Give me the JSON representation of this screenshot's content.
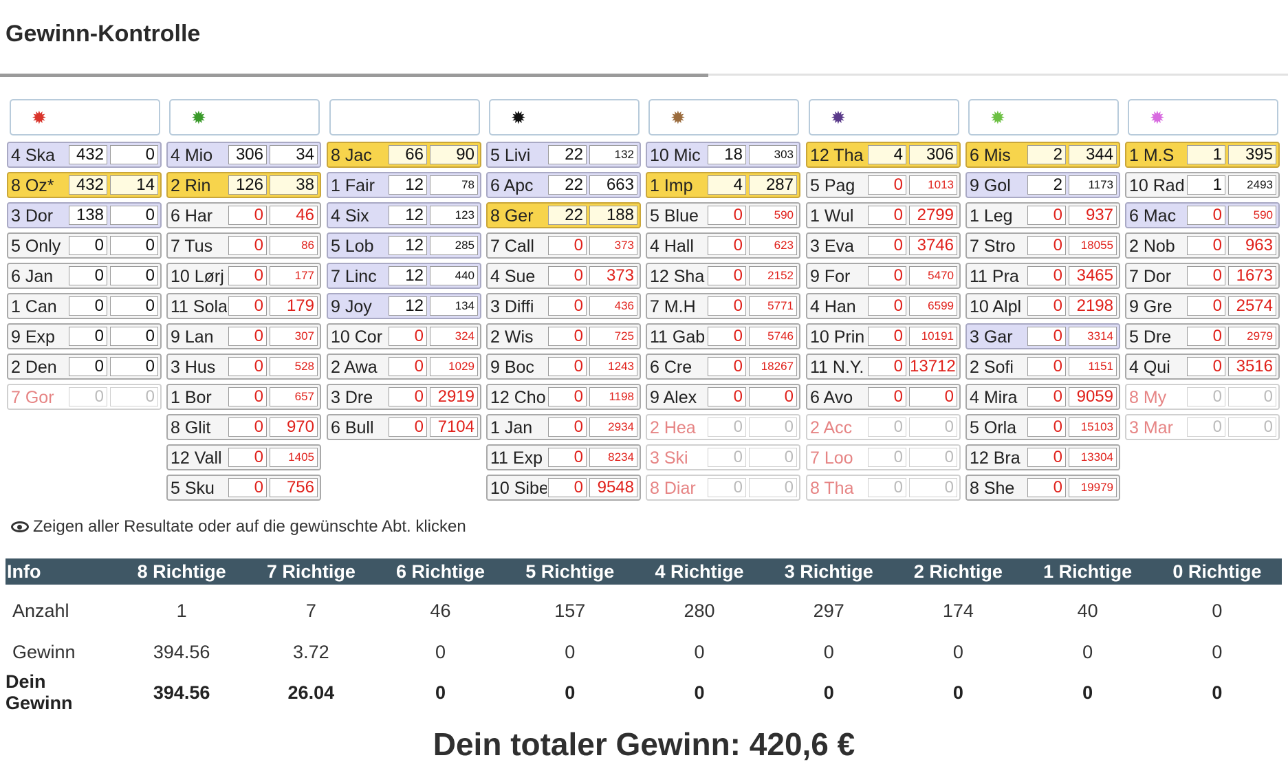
{
  "title": "Gewinn-Kontrolle",
  "columns": [
    {
      "icon": {
        "name": "red-star-icon",
        "color": "#d9342b",
        "glyph": "✹"
      },
      "rows": [
        {
          "name": "4 Ska",
          "a": "432",
          "b": "0",
          "style": "lav"
        },
        {
          "name": "8 Oz*",
          "a": "432",
          "b": "14",
          "style": "gold"
        },
        {
          "name": "3 Dor",
          "a": "138",
          "b": "0",
          "style": "lav"
        },
        {
          "name": "5 Only",
          "a": "0",
          "b": "0",
          "style": "grey"
        },
        {
          "name": "6 Jan",
          "a": "0",
          "b": "0",
          "style": "grey"
        },
        {
          "name": "1 Can",
          "a": "0",
          "b": "0",
          "style": "grey"
        },
        {
          "name": "9 Exp",
          "a": "0",
          "b": "0",
          "style": "grey"
        },
        {
          "name": "2 Den",
          "a": "0",
          "b": "0",
          "style": "grey"
        },
        {
          "name": "7 Gor",
          "a": "0",
          "b": "0",
          "style": "faded"
        }
      ]
    },
    {
      "icon": {
        "name": "green-star-icon",
        "color": "#3a9a2a",
        "glyph": "✹"
      },
      "rows": [
        {
          "name": "4 Mio",
          "a": "306",
          "b": "34",
          "style": "lav"
        },
        {
          "name": "2 Rin",
          "a": "126",
          "b": "38",
          "style": "gold"
        },
        {
          "name": "6 Har",
          "a": "0",
          "b": "46",
          "style": "grey",
          "red": true
        },
        {
          "name": "7 Tus",
          "a": "0",
          "b": "86",
          "style": "grey",
          "red": true,
          "small": true
        },
        {
          "name": "10 Lørj",
          "a": "0",
          "b": "177",
          "style": "grey",
          "red": true,
          "small": true
        },
        {
          "name": "11 Sola",
          "a": "0",
          "b": "179",
          "style": "grey",
          "red": true
        },
        {
          "name": "9 Lan",
          "a": "0",
          "b": "307",
          "style": "grey",
          "red": true,
          "small": true
        },
        {
          "name": "3 Hus",
          "a": "0",
          "b": "528",
          "style": "grey",
          "red": true,
          "small": true
        },
        {
          "name": "1 Bor",
          "a": "0",
          "b": "657",
          "style": "grey",
          "red": true,
          "small": true
        },
        {
          "name": "8 Glit",
          "a": "0",
          "b": "970",
          "style": "grey",
          "red": true
        },
        {
          "name": "12 Vall",
          "a": "0",
          "b": "1405",
          "style": "grey",
          "red": true,
          "small": true
        },
        {
          "name": "5 Sku",
          "a": "0",
          "b": "756",
          "style": "grey",
          "red": true
        }
      ]
    },
    {
      "icon": {
        "name": "empty-icon",
        "color": "#ffffff",
        "glyph": ""
      },
      "rows": [
        {
          "name": "8 Jac",
          "a": "66",
          "b": "90",
          "style": "gold"
        },
        {
          "name": "1 Fair",
          "a": "12",
          "b": "78",
          "style": "lav",
          "small": true
        },
        {
          "name": "4 Six",
          "a": "12",
          "b": "123",
          "style": "lav",
          "small": true
        },
        {
          "name": "5 Lob",
          "a": "12",
          "b": "285",
          "style": "lav",
          "small": true
        },
        {
          "name": "7 Linc",
          "a": "12",
          "b": "440",
          "style": "lav",
          "small": true
        },
        {
          "name": "9 Joy",
          "a": "12",
          "b": "134",
          "style": "lav",
          "small": true
        },
        {
          "name": "10 Cor",
          "a": "0",
          "b": "324",
          "style": "grey",
          "red": true,
          "small": true
        },
        {
          "name": "2 Awa",
          "a": "0",
          "b": "1029",
          "style": "grey",
          "red": true,
          "small": true
        },
        {
          "name": "3 Dre",
          "a": "0",
          "b": "2919",
          "style": "grey",
          "red": true
        },
        {
          "name": "6 Bull",
          "a": "0",
          "b": "7104",
          "style": "grey",
          "red": true
        }
      ]
    },
    {
      "icon": {
        "name": "black-star-icon",
        "color": "#111111",
        "glyph": "✹"
      },
      "rows": [
        {
          "name": "5 Livi",
          "a": "22",
          "b": "132",
          "style": "lav",
          "small": true
        },
        {
          "name": "6 Apc",
          "a": "22",
          "b": "663",
          "style": "lav"
        },
        {
          "name": "8 Ger",
          "a": "22",
          "b": "188",
          "style": "gold"
        },
        {
          "name": "7 Call",
          "a": "0",
          "b": "373",
          "style": "grey",
          "red": true,
          "small": true
        },
        {
          "name": "4 Sue",
          "a": "0",
          "b": "373",
          "style": "grey",
          "red": true
        },
        {
          "name": "3 Diffi",
          "a": "0",
          "b": "436",
          "style": "grey",
          "red": true,
          "small": true
        },
        {
          "name": "2 Wis",
          "a": "0",
          "b": "725",
          "style": "grey",
          "red": true,
          "small": true
        },
        {
          "name": "9 Boc",
          "a": "0",
          "b": "1243",
          "style": "grey",
          "red": true,
          "small": true
        },
        {
          "name": "12 Cho",
          "a": "0",
          "b": "1198",
          "style": "grey",
          "red": true,
          "small": true
        },
        {
          "name": "1 Jan",
          "a": "0",
          "b": "2934",
          "style": "grey",
          "red": true,
          "small": true
        },
        {
          "name": "11 Exp",
          "a": "0",
          "b": "8234",
          "style": "grey",
          "red": true,
          "small": true
        },
        {
          "name": "10 Sibe",
          "a": "0",
          "b": "9548",
          "style": "grey",
          "red": true
        }
      ]
    },
    {
      "icon": {
        "name": "brown-star-icon",
        "color": "#9a6b3c",
        "glyph": "✹"
      },
      "rows": [
        {
          "name": "10 Mic",
          "a": "18",
          "b": "303",
          "style": "lav",
          "small": true
        },
        {
          "name": "1 Imp",
          "a": "4",
          "b": "287",
          "style": "gold"
        },
        {
          "name": "5 Blue",
          "a": "0",
          "b": "590",
          "style": "grey",
          "red": true,
          "small": true
        },
        {
          "name": "4 Hall",
          "a": "0",
          "b": "623",
          "style": "grey",
          "red": true,
          "small": true
        },
        {
          "name": "12 Sha",
          "a": "0",
          "b": "2152",
          "style": "grey",
          "red": true,
          "small": true
        },
        {
          "name": "7 M.H",
          "a": "0",
          "b": "5771",
          "style": "grey",
          "red": true,
          "small": true
        },
        {
          "name": "11 Gab",
          "a": "0",
          "b": "5746",
          "style": "grey",
          "red": true,
          "small": true
        },
        {
          "name": "6 Cre",
          "a": "0",
          "b": "18267",
          "style": "grey",
          "red": true,
          "small": true
        },
        {
          "name": "9 Alex",
          "a": "0",
          "b": "0",
          "style": "grey",
          "red": true
        },
        {
          "name": "2 Hea",
          "a": "0",
          "b": "0",
          "style": "faded"
        },
        {
          "name": "3 Ski",
          "a": "0",
          "b": "0",
          "style": "faded"
        },
        {
          "name": "8 Diar",
          "a": "0",
          "b": "0",
          "style": "faded"
        }
      ]
    },
    {
      "icon": {
        "name": "purple-star-icon",
        "color": "#5a3a8a",
        "glyph": "✹"
      },
      "rows": [
        {
          "name": "12 Tha",
          "a": "4",
          "b": "306",
          "style": "gold"
        },
        {
          "name": "5 Pag",
          "a": "0",
          "b": "1013",
          "style": "grey",
          "red": true,
          "small": true
        },
        {
          "name": "1 Wul",
          "a": "0",
          "b": "2799",
          "style": "grey",
          "red": true
        },
        {
          "name": "3 Eva",
          "a": "0",
          "b": "3746",
          "style": "grey",
          "red": true
        },
        {
          "name": "9 For",
          "a": "0",
          "b": "5470",
          "style": "grey",
          "red": true,
          "small": true
        },
        {
          "name": "4 Han",
          "a": "0",
          "b": "6599",
          "style": "grey",
          "red": true,
          "small": true
        },
        {
          "name": "10 Prin",
          "a": "0",
          "b": "10191",
          "style": "grey",
          "red": true,
          "small": true
        },
        {
          "name": "11 N.Y.",
          "a": "0",
          "b": "13712",
          "style": "grey",
          "red": true
        },
        {
          "name": "6 Avo",
          "a": "0",
          "b": "0",
          "style": "grey",
          "red": true
        },
        {
          "name": "2 Acc",
          "a": "0",
          "b": "0",
          "style": "faded"
        },
        {
          "name": "7 Loo",
          "a": "0",
          "b": "0",
          "style": "faded"
        },
        {
          "name": "8 Tha",
          "a": "0",
          "b": "0",
          "style": "faded"
        }
      ]
    },
    {
      "icon": {
        "name": "lightgreen-star-icon",
        "color": "#6cc043",
        "glyph": "✹"
      },
      "rows": [
        {
          "name": "6 Mis",
          "a": "2",
          "b": "344",
          "style": "gold"
        },
        {
          "name": "9 Gol",
          "a": "2",
          "b": "1173",
          "style": "lav",
          "small": true
        },
        {
          "name": "1 Leg",
          "a": "0",
          "b": "937",
          "style": "grey",
          "red": true
        },
        {
          "name": "7 Stro",
          "a": "0",
          "b": "18055",
          "style": "grey",
          "red": true,
          "small": true
        },
        {
          "name": "11 Pra",
          "a": "0",
          "b": "3465",
          "style": "grey",
          "red": true
        },
        {
          "name": "10 Alpl",
          "a": "0",
          "b": "2198",
          "style": "grey",
          "red": true
        },
        {
          "name": "3 Gar",
          "a": "0",
          "b": "3314",
          "style": "lav",
          "red": true,
          "small": true
        },
        {
          "name": "2 Sofi",
          "a": "0",
          "b": "1151",
          "style": "grey",
          "red": true,
          "small": true
        },
        {
          "name": "4 Mira",
          "a": "0",
          "b": "9059",
          "style": "grey",
          "red": true
        },
        {
          "name": "5 Orla",
          "a": "0",
          "b": "15103",
          "style": "grey",
          "red": true,
          "small": true
        },
        {
          "name": "12 Bra",
          "a": "0",
          "b": "13304",
          "style": "grey",
          "red": true,
          "small": true
        },
        {
          "name": "8 She",
          "a": "0",
          "b": "19979",
          "style": "grey",
          "red": true,
          "small": true
        }
      ]
    },
    {
      "icon": {
        "name": "pink-star-icon",
        "color": "#d86ae0",
        "glyph": "✹"
      },
      "rows": [
        {
          "name": "1 M.S",
          "a": "1",
          "b": "395",
          "style": "gold"
        },
        {
          "name": "10 Rad",
          "a": "1",
          "b": "2493",
          "style": "grey",
          "small": true
        },
        {
          "name": "6 Mac",
          "a": "0",
          "b": "590",
          "style": "lav",
          "red": true,
          "small": true
        },
        {
          "name": "2 Nob",
          "a": "0",
          "b": "963",
          "style": "grey",
          "red": true
        },
        {
          "name": "7 Dor",
          "a": "0",
          "b": "1673",
          "style": "grey",
          "red": true
        },
        {
          "name": "9 Gre",
          "a": "0",
          "b": "2574",
          "style": "grey",
          "red": true
        },
        {
          "name": "5 Dre",
          "a": "0",
          "b": "2979",
          "style": "grey",
          "red": true,
          "small": true
        },
        {
          "name": "4 Qui",
          "a": "0",
          "b": "3516",
          "style": "grey",
          "red": true
        },
        {
          "name": "8 My",
          "a": "0",
          "b": "0",
          "style": "faded"
        },
        {
          "name": "3 Mar",
          "a": "0",
          "b": "0",
          "style": "faded"
        }
      ]
    }
  ],
  "hint": "Zeigen aller Resultate oder auf die gewünschte Abt. klicken",
  "results": {
    "headers": [
      "Info",
      "8 Richtige",
      "7 Richtige",
      "6 Richtige",
      "5 Richtige",
      "4 Richtige",
      "3 Richtige",
      "2 Richtige",
      "1 Richtige",
      "0 Richtige"
    ],
    "rows": [
      {
        "label": "Anzahl",
        "values": [
          "1",
          "7",
          "46",
          "157",
          "280",
          "297",
          "174",
          "40",
          "0"
        ]
      },
      {
        "label": "Gewinn",
        "values": [
          "394.56",
          "3.72",
          "0",
          "0",
          "0",
          "0",
          "0",
          "0",
          "0"
        ]
      },
      {
        "label": "Dein Gewinn",
        "values": [
          "394.56",
          "26.04",
          "0",
          "0",
          "0",
          "0",
          "0",
          "0",
          "0"
        ]
      }
    ]
  },
  "total": "Dein totaler Gewinn: 420,6 €",
  "colors": {
    "header_bar": "#3f5765",
    "gold": "#f7d44c",
    "lavender": "#dcdcf5",
    "red": "#e0201a"
  }
}
